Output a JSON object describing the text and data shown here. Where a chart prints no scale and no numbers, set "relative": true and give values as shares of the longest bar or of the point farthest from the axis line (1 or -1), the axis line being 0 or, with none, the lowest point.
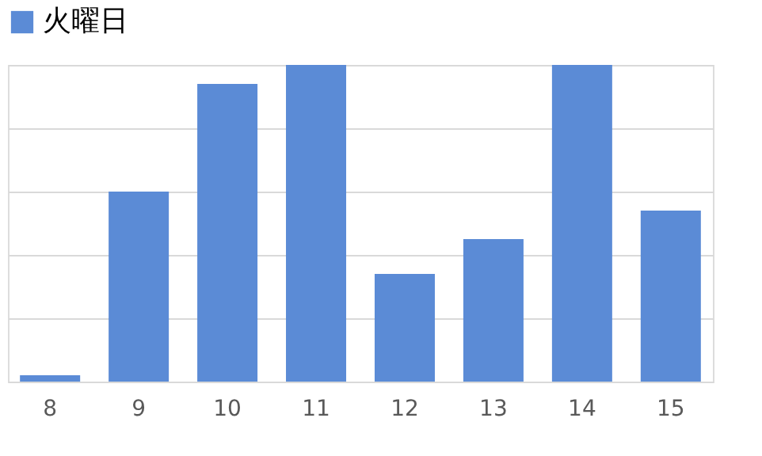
{
  "chart_data": {
    "type": "bar",
    "relative": true,
    "categories": [
      "8",
      "9",
      "10",
      "11",
      "12",
      "13",
      "14",
      "15"
    ],
    "series": [
      {
        "name": "火曜日",
        "color": "#5b8bd6",
        "values": [
          0.02,
          0.6,
          0.94,
          1,
          0.34,
          0.45,
          1,
          0.54
        ]
      }
    ],
    "grid": "y",
    "legend": "top"
  }
}
